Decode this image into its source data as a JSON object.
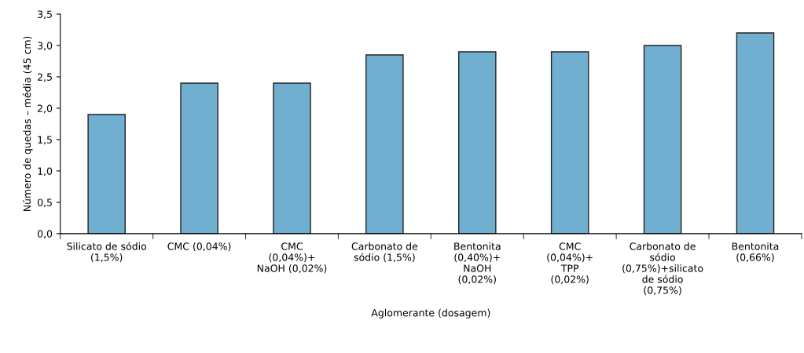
{
  "chart_data": {
    "type": "bar",
    "xlabel": "Aglomerante (dosagem)",
    "ylabel": "Número de quedas – média (45 cm)",
    "categories": [
      "Silicato de sódio\n(1,5%)",
      "CMC (0,04%)",
      "CMC\n(0,04%)+\nNaOH (0,02%)",
      "Carbonato de\nsódio (1,5%)",
      "Bentonita\n(0,40%)+\nNaOH\n(0,02%)",
      "CMC\n(0,04%)+\nTPP\n(0,02%)",
      "Carbonato de\nsódio\n(0,75%)+silicato\nde sódio\n(0,75%)",
      "Bentonita\n(0,66%)"
    ],
    "values": [
      1.9,
      2.4,
      2.4,
      2.85,
      2.9,
      2.9,
      3.0,
      3.2
    ],
    "color": "#70afd0",
    "ylim": [
      0,
      3.5
    ],
    "yticks": [
      {
        "value": 0,
        "label": "0,0"
      },
      {
        "value": 0.5,
        "label": "0,5"
      },
      {
        "value": 1,
        "label": "1,0"
      },
      {
        "value": 1.5,
        "label": "1,5"
      },
      {
        "value": 2,
        "label": "2,0"
      },
      {
        "value": 2.5,
        "label": "2,5"
      },
      {
        "value": 3,
        "label": "3,0"
      },
      {
        "value": 3.5,
        "label": "3,5"
      }
    ],
    "grid": false,
    "legend": false
  }
}
